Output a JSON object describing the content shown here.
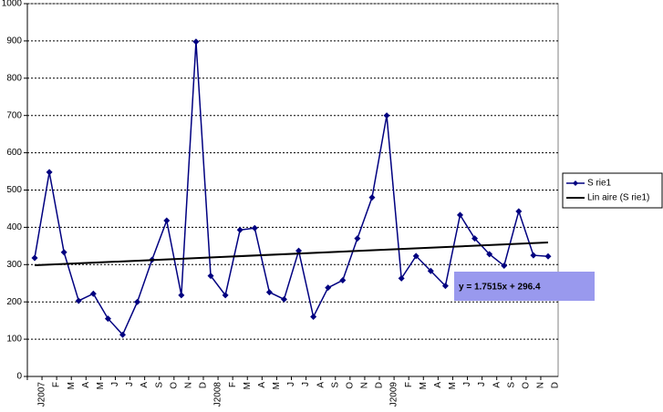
{
  "chart_data": {
    "type": "line",
    "categories": [
      "J2007",
      "F",
      "M",
      "A",
      "M",
      "J",
      "J",
      "A",
      "S",
      "O",
      "N",
      "D",
      "J2008",
      "F",
      "M",
      "A",
      "M",
      "J",
      "J",
      "A",
      "S",
      "O",
      "N",
      "D",
      "J2009",
      "F",
      "M",
      "A",
      "M",
      "J",
      "J",
      "A",
      "S",
      "O",
      "N",
      "D"
    ],
    "series": [
      {
        "name": "S rie1",
        "color": "#000080",
        "values": [
          318,
          548,
          333,
          203,
          222,
          155,
          112,
          200,
          313,
          418,
          218,
          898,
          270,
          218,
          393,
          398,
          226,
          207,
          337,
          160,
          238,
          258,
          370,
          480,
          700,
          263,
          323,
          283,
          243,
          433,
          370,
          328,
          297,
          443,
          325,
          322
        ]
      }
    ],
    "trendline": {
      "name": "Lin aire (S rie1)",
      "color": "#000000",
      "slope": 1.7515,
      "intercept": 296.4,
      "label": "y = 1.7515x + 296.4"
    },
    "ylim": [
      0,
      1000
    ],
    "yticks": [
      0,
      100,
      200,
      300,
      400,
      500,
      600,
      700,
      800,
      900,
      1000
    ],
    "grid": true,
    "legend": "right"
  }
}
